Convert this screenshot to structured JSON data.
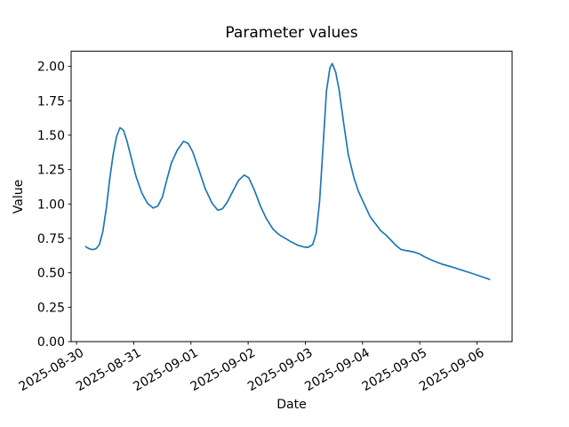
{
  "chart_data": {
    "type": "line",
    "title": "Parameter values",
    "xlabel": "Date",
    "ylabel": "Value",
    "x_axis_kind": "date axis, values stored as fractional days since 2025-08-30 00:00",
    "xlim_days": [
      -0.095,
      7.615
    ],
    "ylim": [
      0,
      2.11
    ],
    "grid": false,
    "legend": "none",
    "background": "#ffffff",
    "spine_color": "#000000",
    "tick_color": "#000000",
    "x_ticks": [
      {
        "d": 0,
        "label": "2025-08-30"
      },
      {
        "d": 1,
        "label": "2025-08-31"
      },
      {
        "d": 2,
        "label": "2025-09-01"
      },
      {
        "d": 3,
        "label": "2025-09-02"
      },
      {
        "d": 4,
        "label": "2025-09-03"
      },
      {
        "d": 5,
        "label": "2025-09-04"
      },
      {
        "d": 6,
        "label": "2025-09-05"
      },
      {
        "d": 7,
        "label": "2025-09-06"
      }
    ],
    "x_tick_rotation_deg": 30,
    "y_ticks": [
      {
        "v": 0.0,
        "label": "0.00"
      },
      {
        "v": 0.25,
        "label": "0.25"
      },
      {
        "v": 0.5,
        "label": "0.50"
      },
      {
        "v": 0.75,
        "label": "0.75"
      },
      {
        "v": 1.0,
        "label": "1.00"
      },
      {
        "v": 1.25,
        "label": "1.25"
      },
      {
        "v": 1.5,
        "label": "1.50"
      },
      {
        "v": 1.75,
        "label": "1.75"
      },
      {
        "v": 2.0,
        "label": "2.00"
      }
    ],
    "series": [
      {
        "name": "parameter-values",
        "color": "#1f77b4",
        "line_width": 1.7,
        "points_day_value": [
          [
            0.16,
            0.69
          ],
          [
            0.22,
            0.675
          ],
          [
            0.28,
            0.668
          ],
          [
            0.34,
            0.675
          ],
          [
            0.4,
            0.705
          ],
          [
            0.46,
            0.8
          ],
          [
            0.52,
            0.97
          ],
          [
            0.58,
            1.18
          ],
          [
            0.64,
            1.36
          ],
          [
            0.7,
            1.49
          ],
          [
            0.76,
            1.555
          ],
          [
            0.82,
            1.535
          ],
          [
            0.88,
            1.46
          ],
          [
            0.96,
            1.33
          ],
          [
            1.04,
            1.2
          ],
          [
            1.14,
            1.08
          ],
          [
            1.24,
            1.005
          ],
          [
            1.34,
            0.97
          ],
          [
            1.42,
            0.985
          ],
          [
            1.5,
            1.05
          ],
          [
            1.58,
            1.18
          ],
          [
            1.66,
            1.3
          ],
          [
            1.76,
            1.39
          ],
          [
            1.87,
            1.455
          ],
          [
            1.95,
            1.44
          ],
          [
            2.03,
            1.38
          ],
          [
            2.13,
            1.26
          ],
          [
            2.25,
            1.11
          ],
          [
            2.37,
            1.005
          ],
          [
            2.47,
            0.955
          ],
          [
            2.55,
            0.965
          ],
          [
            2.63,
            1.01
          ],
          [
            2.73,
            1.09
          ],
          [
            2.83,
            1.17
          ],
          [
            2.93,
            1.21
          ],
          [
            3.01,
            1.19
          ],
          [
            3.11,
            1.1
          ],
          [
            3.21,
            0.99
          ],
          [
            3.31,
            0.9
          ],
          [
            3.43,
            0.82
          ],
          [
            3.53,
            0.78
          ],
          [
            3.63,
            0.755
          ],
          [
            3.75,
            0.725
          ],
          [
            3.87,
            0.7
          ],
          [
            3.97,
            0.688
          ],
          [
            4.05,
            0.685
          ],
          [
            4.13,
            0.705
          ],
          [
            4.19,
            0.79
          ],
          [
            4.25,
            1.02
          ],
          [
            4.31,
            1.42
          ],
          [
            4.37,
            1.82
          ],
          [
            4.43,
            1.99
          ],
          [
            4.47,
            2.02
          ],
          [
            4.53,
            1.96
          ],
          [
            4.59,
            1.83
          ],
          [
            4.67,
            1.59
          ],
          [
            4.75,
            1.36
          ],
          [
            4.85,
            1.19
          ],
          [
            4.93,
            1.09
          ],
          [
            5.03,
            1.0
          ],
          [
            5.13,
            0.91
          ],
          [
            5.21,
            0.865
          ],
          [
            5.32,
            0.805
          ],
          [
            5.41,
            0.775
          ],
          [
            5.49,
            0.74
          ],
          [
            5.58,
            0.7
          ],
          [
            5.67,
            0.67
          ],
          [
            5.78,
            0.66
          ],
          [
            5.89,
            0.652
          ],
          [
            5.99,
            0.638
          ],
          [
            6.09,
            0.615
          ],
          [
            6.23,
            0.588
          ],
          [
            6.39,
            0.563
          ],
          [
            6.56,
            0.543
          ],
          [
            6.73,
            0.52
          ],
          [
            6.9,
            0.498
          ],
          [
            7.06,
            0.475
          ],
          [
            7.22,
            0.452
          ]
        ]
      }
    ]
  }
}
